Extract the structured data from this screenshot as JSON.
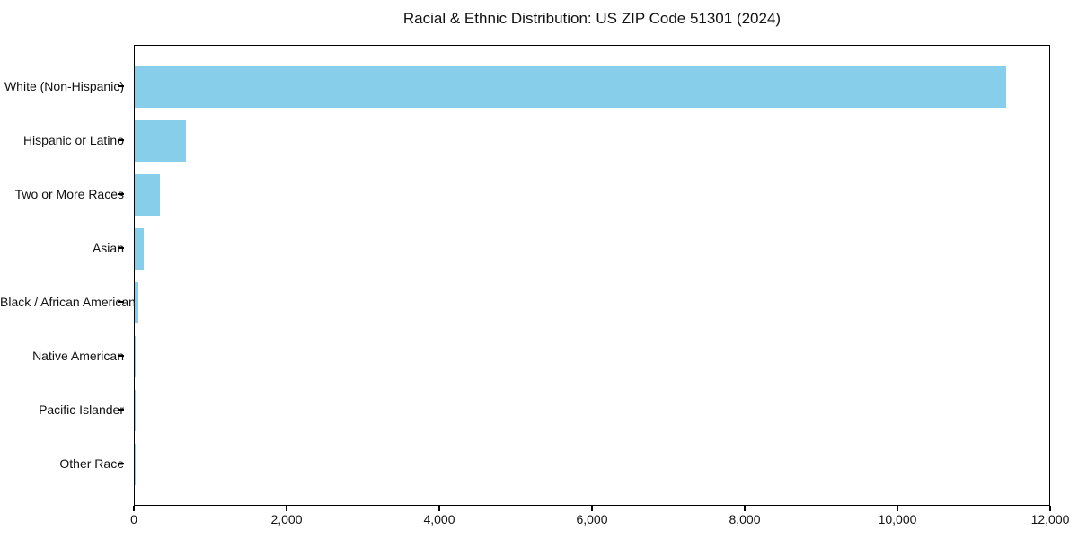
{
  "title": "Racial & Ethnic Distribution: US ZIP Code 51301 (2024)",
  "chart_data": {
    "type": "bar",
    "orientation": "horizontal",
    "title": "Racial & Ethnic Distribution: US ZIP Code 51301 (2024)",
    "categories": [
      "White (Non-Hispanic)",
      "Hispanic or Latino",
      "Two or More Races",
      "Asian",
      "Black / African American",
      "Native American",
      "Pacific Islander",
      "Other Race"
    ],
    "values": [
      11435,
      670,
      330,
      112,
      48,
      12,
      4,
      1
    ],
    "xlabel": "",
    "ylabel": "",
    "xlim": [
      0,
      12000
    ],
    "x_ticks": [
      0,
      2000,
      4000,
      6000,
      8000,
      10000,
      12000
    ],
    "x_tick_labels": [
      "0",
      "2,000",
      "4,000",
      "6,000",
      "8,000",
      "10,000",
      "12,000"
    ],
    "bar_color": "#87CEEB",
    "text_color": "#111111",
    "spine_color": "#000000",
    "grid": false,
    "legend_position": "none"
  }
}
